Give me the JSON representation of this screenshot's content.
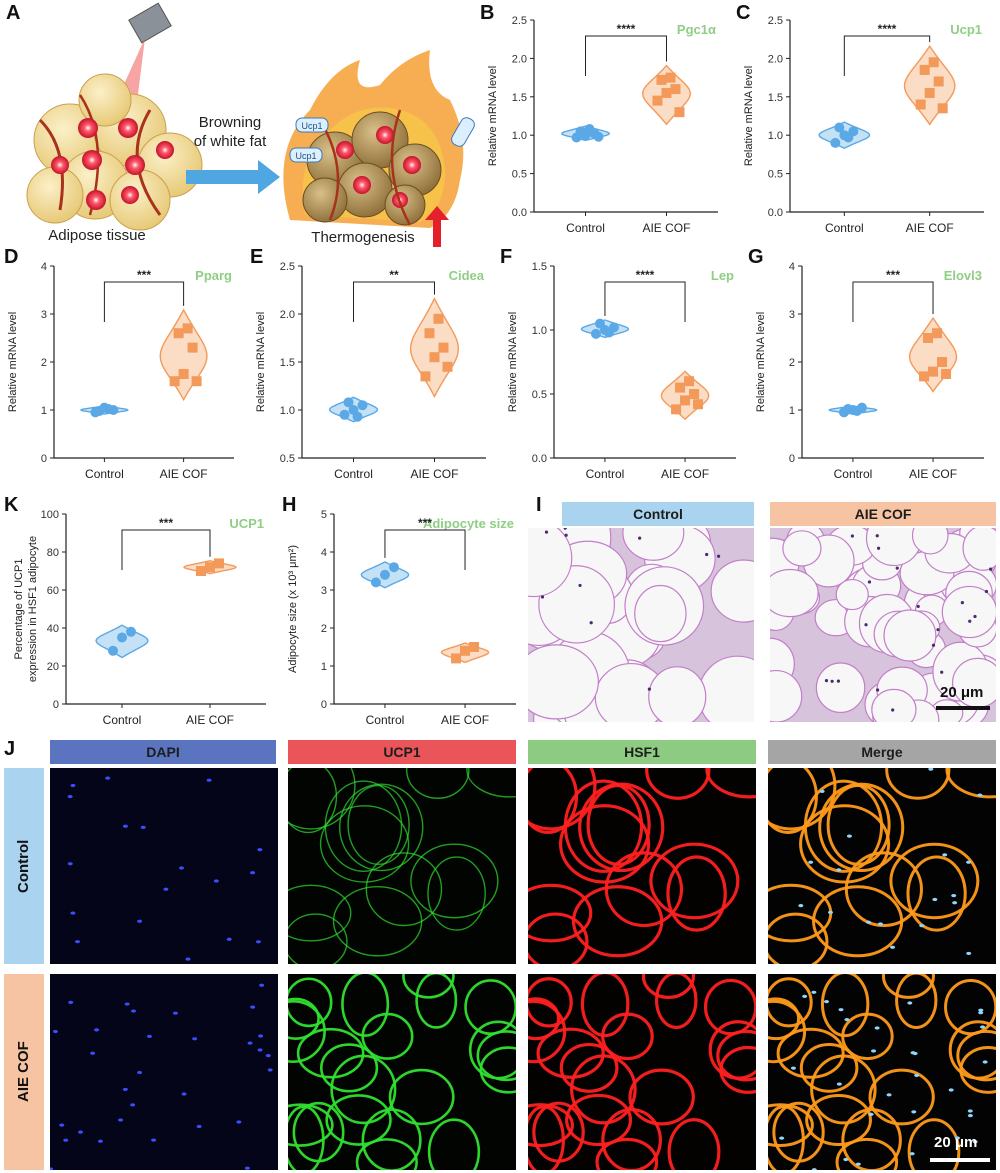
{
  "panels": {
    "A": {
      "letter": "A",
      "label_browning_1": "Browning",
      "label_browning_2": "of white fat",
      "label_adipose": "Adipose tissue",
      "label_thermo": "Thermogenesis",
      "ucp_tag": "Ucp1"
    },
    "B": "B",
    "C": "C",
    "D": "D",
    "E": "E",
    "F": "F",
    "G": "G",
    "H": "H",
    "K": "K",
    "I": "I",
    "J": "J"
  },
  "colors": {
    "control": "#5aa9e6",
    "aie": "#f39a5a",
    "gene_label": "#8fce83",
    "hdr_control": "#a9d3ef",
    "hdr_aie": "#f6c4a3",
    "hdr_dapi": "#5a74c0",
    "hdr_ucp1": "#ea5559",
    "hdr_hsf1": "#8dcb82",
    "hdr_merge": "#a5a5a5"
  },
  "chart_data": [
    {
      "id": "B",
      "type": "scatter",
      "title": "Pgc1α",
      "ylabel": "Relative mRNA level",
      "categories": [
        "Control",
        "AIE COF"
      ],
      "ylim": [
        0,
        2.5
      ],
      "yticks": [
        "0.0",
        "0.5",
        "1.0",
        "1.5",
        "2.0",
        "2.5"
      ],
      "sig": "****",
      "control": [
        0.97,
        1.0,
        1.02,
        1.05,
        1.08,
        0.98
      ],
      "aie": [
        1.45,
        1.55,
        1.6,
        1.72,
        1.75,
        1.3
      ]
    },
    {
      "id": "C",
      "type": "scatter",
      "title": "Ucp1",
      "ylabel": "Relative mRNA level",
      "categories": [
        "Control",
        "AIE COF"
      ],
      "ylim": [
        0,
        2.5
      ],
      "yticks": [
        "0.0",
        "0.5",
        "1.0",
        "1.5",
        "2.0",
        "2.5"
      ],
      "sig": "****",
      "control": [
        0.9,
        1.0,
        1.05,
        1.1,
        0.97
      ],
      "aie": [
        1.4,
        1.55,
        1.7,
        1.85,
        1.95,
        1.35
      ]
    },
    {
      "id": "D",
      "type": "scatter",
      "title": "Pparg",
      "ylabel": "Relative mRNA level",
      "categories": [
        "Control",
        "AIE COF"
      ],
      "ylim": [
        0,
        4
      ],
      "yticks": [
        "0",
        "1",
        "2",
        "3",
        "4"
      ],
      "sig": "***",
      "control": [
        0.95,
        1.05,
        1.0,
        0.98,
        1.02
      ],
      "aie": [
        1.6,
        1.75,
        2.3,
        2.6,
        2.7,
        1.6
      ]
    },
    {
      "id": "E",
      "type": "scatter",
      "title": "Cidea",
      "ylabel": "Relative mRNA level",
      "categories": [
        "Control",
        "AIE COF"
      ],
      "ylim": [
        0.5,
        2.5
      ],
      "yticks": [
        "0.5",
        "1.0",
        "1.5",
        "2.0",
        "2.5"
      ],
      "sig": "**",
      "control": [
        0.95,
        1.0,
        1.05,
        1.08,
        0.93
      ],
      "aie": [
        1.35,
        1.55,
        1.65,
        1.8,
        1.95,
        1.45
      ]
    },
    {
      "id": "F",
      "type": "scatter",
      "title": "Lep",
      "ylabel": "Relative mRNA level",
      "categories": [
        "Control",
        "AIE COF"
      ],
      "ylim": [
        0,
        1.5
      ],
      "yticks": [
        "0.0",
        "0.5",
        "1.0",
        "1.5"
      ],
      "sig": "****",
      "control": [
        0.97,
        1.0,
        1.02,
        1.05,
        0.98
      ],
      "aie": [
        0.38,
        0.45,
        0.5,
        0.55,
        0.6,
        0.42
      ]
    },
    {
      "id": "G",
      "type": "scatter",
      "title": "Elovl3",
      "ylabel": "Relative mRNA level",
      "categories": [
        "Control",
        "AIE COF"
      ],
      "ylim": [
        0,
        4
      ],
      "yticks": [
        "0",
        "1",
        "2",
        "3",
        "4"
      ],
      "sig": "***",
      "control": [
        0.95,
        1.0,
        1.05,
        1.02,
        0.98
      ],
      "aie": [
        1.7,
        1.8,
        2.0,
        2.5,
        2.6,
        1.75
      ]
    },
    {
      "id": "K",
      "type": "scatter",
      "title": "UCP1",
      "ylabel": "Percentage of UCP1 expression in HSF1 adipocyte",
      "categories": [
        "Control",
        "AIE COF"
      ],
      "ylim": [
        0,
        100
      ],
      "yticks": [
        "0",
        "20",
        "40",
        "60",
        "80",
        "100"
      ],
      "sig": "***",
      "control": [
        28,
        35,
        38
      ],
      "aie": [
        70,
        72,
        74
      ]
    },
    {
      "id": "H",
      "type": "scatter",
      "title": "Adipocyte size",
      "ylabel": "Adipocyte size (x 10³ μm²)",
      "categories": [
        "Control",
        "AIE COF"
      ],
      "ylim": [
        0,
        5
      ],
      "yticks": [
        "0",
        "1",
        "2",
        "3",
        "4",
        "5"
      ],
      "sig": "***",
      "control": [
        3.2,
        3.4,
        3.6
      ],
      "aie": [
        1.2,
        1.4,
        1.5
      ]
    }
  ],
  "histology": {
    "control": "Control",
    "aie": "AIE COF",
    "scale": "20 μm"
  },
  "fluor": {
    "cols": [
      "DAPI",
      "UCP1",
      "HSF1",
      "Merge"
    ],
    "rows": [
      "Control",
      "AIE COF"
    ],
    "scale": "20 μm"
  }
}
